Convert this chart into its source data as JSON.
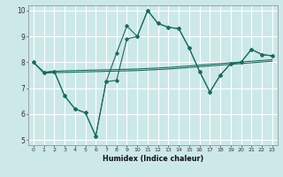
{
  "title": "",
  "xlabel": "Humidex (Indice chaleur)",
  "xlim": [
    -0.5,
    23.5
  ],
  "ylim": [
    4.8,
    10.2
  ],
  "yticks": [
    5,
    6,
    7,
    8,
    9,
    10
  ],
  "xticks": [
    0,
    1,
    2,
    3,
    4,
    5,
    6,
    7,
    8,
    9,
    10,
    11,
    12,
    13,
    14,
    15,
    16,
    17,
    18,
    19,
    20,
    21,
    22,
    23
  ],
  "bg_color": "#cce8e8",
  "grid_color": "#ffffff",
  "line_color": "#1b6b5e",
  "lines": [
    {
      "x": [
        0,
        1,
        2,
        3,
        4,
        5,
        6,
        7,
        8,
        9,
        10,
        11,
        12,
        13,
        14,
        15,
        16,
        17,
        18,
        19,
        20,
        21,
        22,
        23
      ],
      "y": [
        8.0,
        7.62,
        7.65,
        7.67,
        7.68,
        7.69,
        7.7,
        7.71,
        7.72,
        7.73,
        7.74,
        7.76,
        7.78,
        7.8,
        7.83,
        7.86,
        7.89,
        7.92,
        7.95,
        7.98,
        8.01,
        8.04,
        8.07,
        8.1
      ],
      "marker": false
    },
    {
      "x": [
        0,
        1,
        2,
        3,
        4,
        5,
        6,
        7,
        8,
        9,
        10,
        11,
        12,
        13,
        14,
        15,
        16,
        17,
        18,
        19,
        20,
        21,
        22,
        23
      ],
      "y": [
        8.0,
        7.58,
        7.6,
        7.61,
        7.62,
        7.63,
        7.64,
        7.65,
        7.66,
        7.67,
        7.68,
        7.7,
        7.72,
        7.74,
        7.77,
        7.8,
        7.83,
        7.86,
        7.89,
        7.92,
        7.95,
        7.98,
        8.01,
        8.04
      ],
      "marker": false
    },
    {
      "x": [
        0,
        1,
        2,
        3,
        4,
        5,
        6,
        7,
        8,
        9,
        10,
        11,
        12,
        13,
        14,
        15,
        16,
        17,
        18,
        19,
        20,
        21,
        22,
        23
      ],
      "y": [
        8.0,
        7.6,
        7.65,
        6.7,
        6.2,
        6.05,
        5.15,
        7.25,
        8.35,
        9.4,
        9.0,
        10.0,
        9.5,
        9.35,
        9.3,
        8.55,
        7.65,
        6.85,
        7.5,
        7.95,
        8.0,
        8.5,
        8.3,
        8.25
      ],
      "marker": true
    },
    {
      "x": [
        0,
        1,
        2,
        3,
        4,
        5,
        6,
        7,
        8,
        9,
        10,
        11,
        12,
        13,
        14,
        15,
        16,
        17,
        18,
        19,
        20,
        21,
        22,
        23
      ],
      "y": [
        8.0,
        7.6,
        7.65,
        6.7,
        6.2,
        6.05,
        5.15,
        7.25,
        7.3,
        8.9,
        9.0,
        10.0,
        9.5,
        9.35,
        9.3,
        8.55,
        7.65,
        6.85,
        7.5,
        7.95,
        8.0,
        8.5,
        8.3,
        8.25
      ],
      "marker": true
    }
  ]
}
